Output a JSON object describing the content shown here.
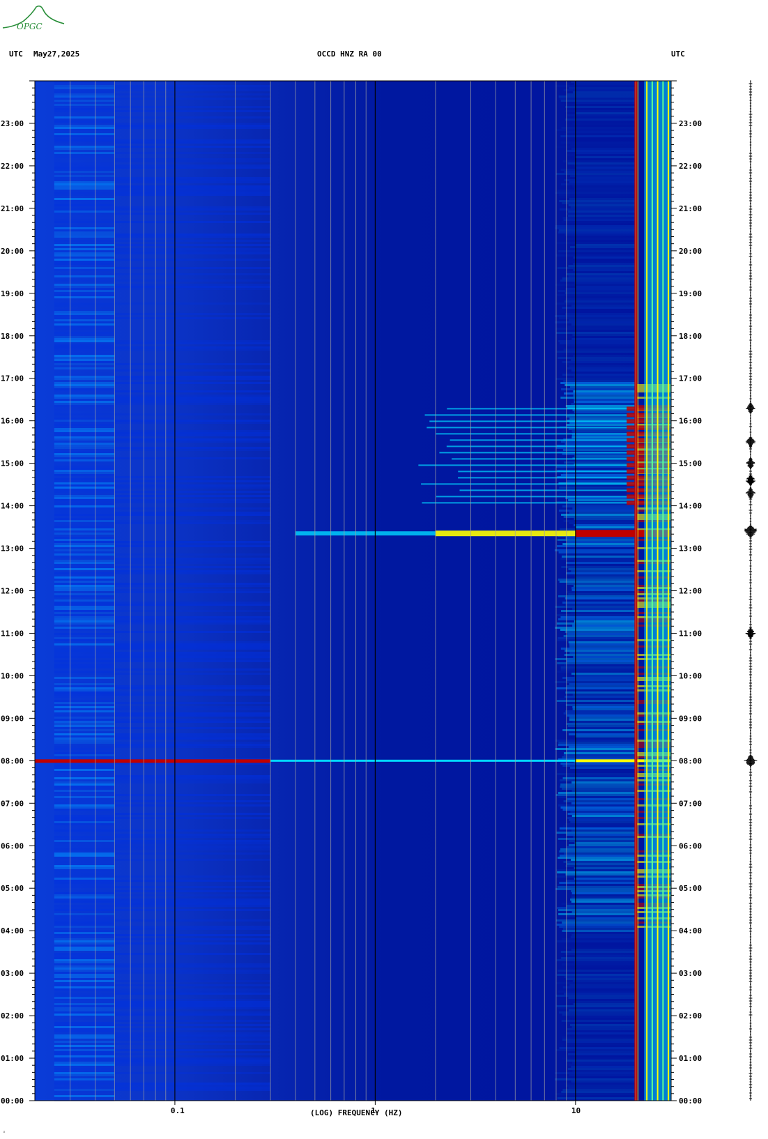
{
  "header": {
    "utc_left": "UTC",
    "date": "May27,2025",
    "station": "OCCD HNZ RA 00",
    "utc_right": "UTC"
  },
  "logo": {
    "text": "OPGC",
    "color": "#2a8f3a"
  },
  "footer": {
    "mark": "ᵁ"
  },
  "chart_data": {
    "type": "heatmap",
    "title": "OCCD HNZ RA 00",
    "xlabel": "(LOG) FREQUENCY (HZ)",
    "ylabel": "UTC",
    "x_scale": "log",
    "xlim": [
      0.02,
      30
    ],
    "ylim": [
      "00:00",
      "24:00"
    ],
    "x_ticks": [
      {
        "value": 0.1,
        "label": "0.1"
      },
      {
        "value": 1,
        "label": "1"
      },
      {
        "value": 10,
        "label": "10"
      }
    ],
    "y_ticks": [
      "00:00",
      "01:00",
      "02:00",
      "03:00",
      "04:00",
      "05:00",
      "06:00",
      "07:00",
      "08:00",
      "09:00",
      "10:00",
      "11:00",
      "12:00",
      "13:00",
      "14:00",
      "15:00",
      "16:00",
      "17:00",
      "18:00",
      "19:00",
      "20:00",
      "21:00",
      "22:00",
      "23:00"
    ],
    "colormap": [
      "#0000a0",
      "#0030e0",
      "#0090ff",
      "#00d8ff",
      "#60ff90",
      "#ffff00",
      "#ff8000",
      "#c00000",
      "#800000"
    ],
    "features": [
      {
        "type": "broadband_event",
        "time_h": 8.0,
        "freq_range_hz": [
          0.02,
          30
        ]
      },
      {
        "type": "broadband_event",
        "time_h": 13.35,
        "freq_range_hz": [
          0.1,
          30
        ]
      },
      {
        "type": "tremor_band",
        "time_range_h": [
          14.0,
          16.3
        ],
        "freq_range_hz": [
          1.5,
          30
        ]
      },
      {
        "type": "persistent_line",
        "freq_hz": 20,
        "time_range_h": [
          0,
          24
        ]
      },
      {
        "type": "persistent_band",
        "freq_range_hz": [
          22,
          30
        ],
        "time_range_h": [
          0,
          24
        ]
      }
    ],
    "seismogram_event_times_h": [
      8.0,
      13.4,
      14.3,
      14.6,
      15.0,
      15.5,
      16.3,
      11.0
    ]
  }
}
